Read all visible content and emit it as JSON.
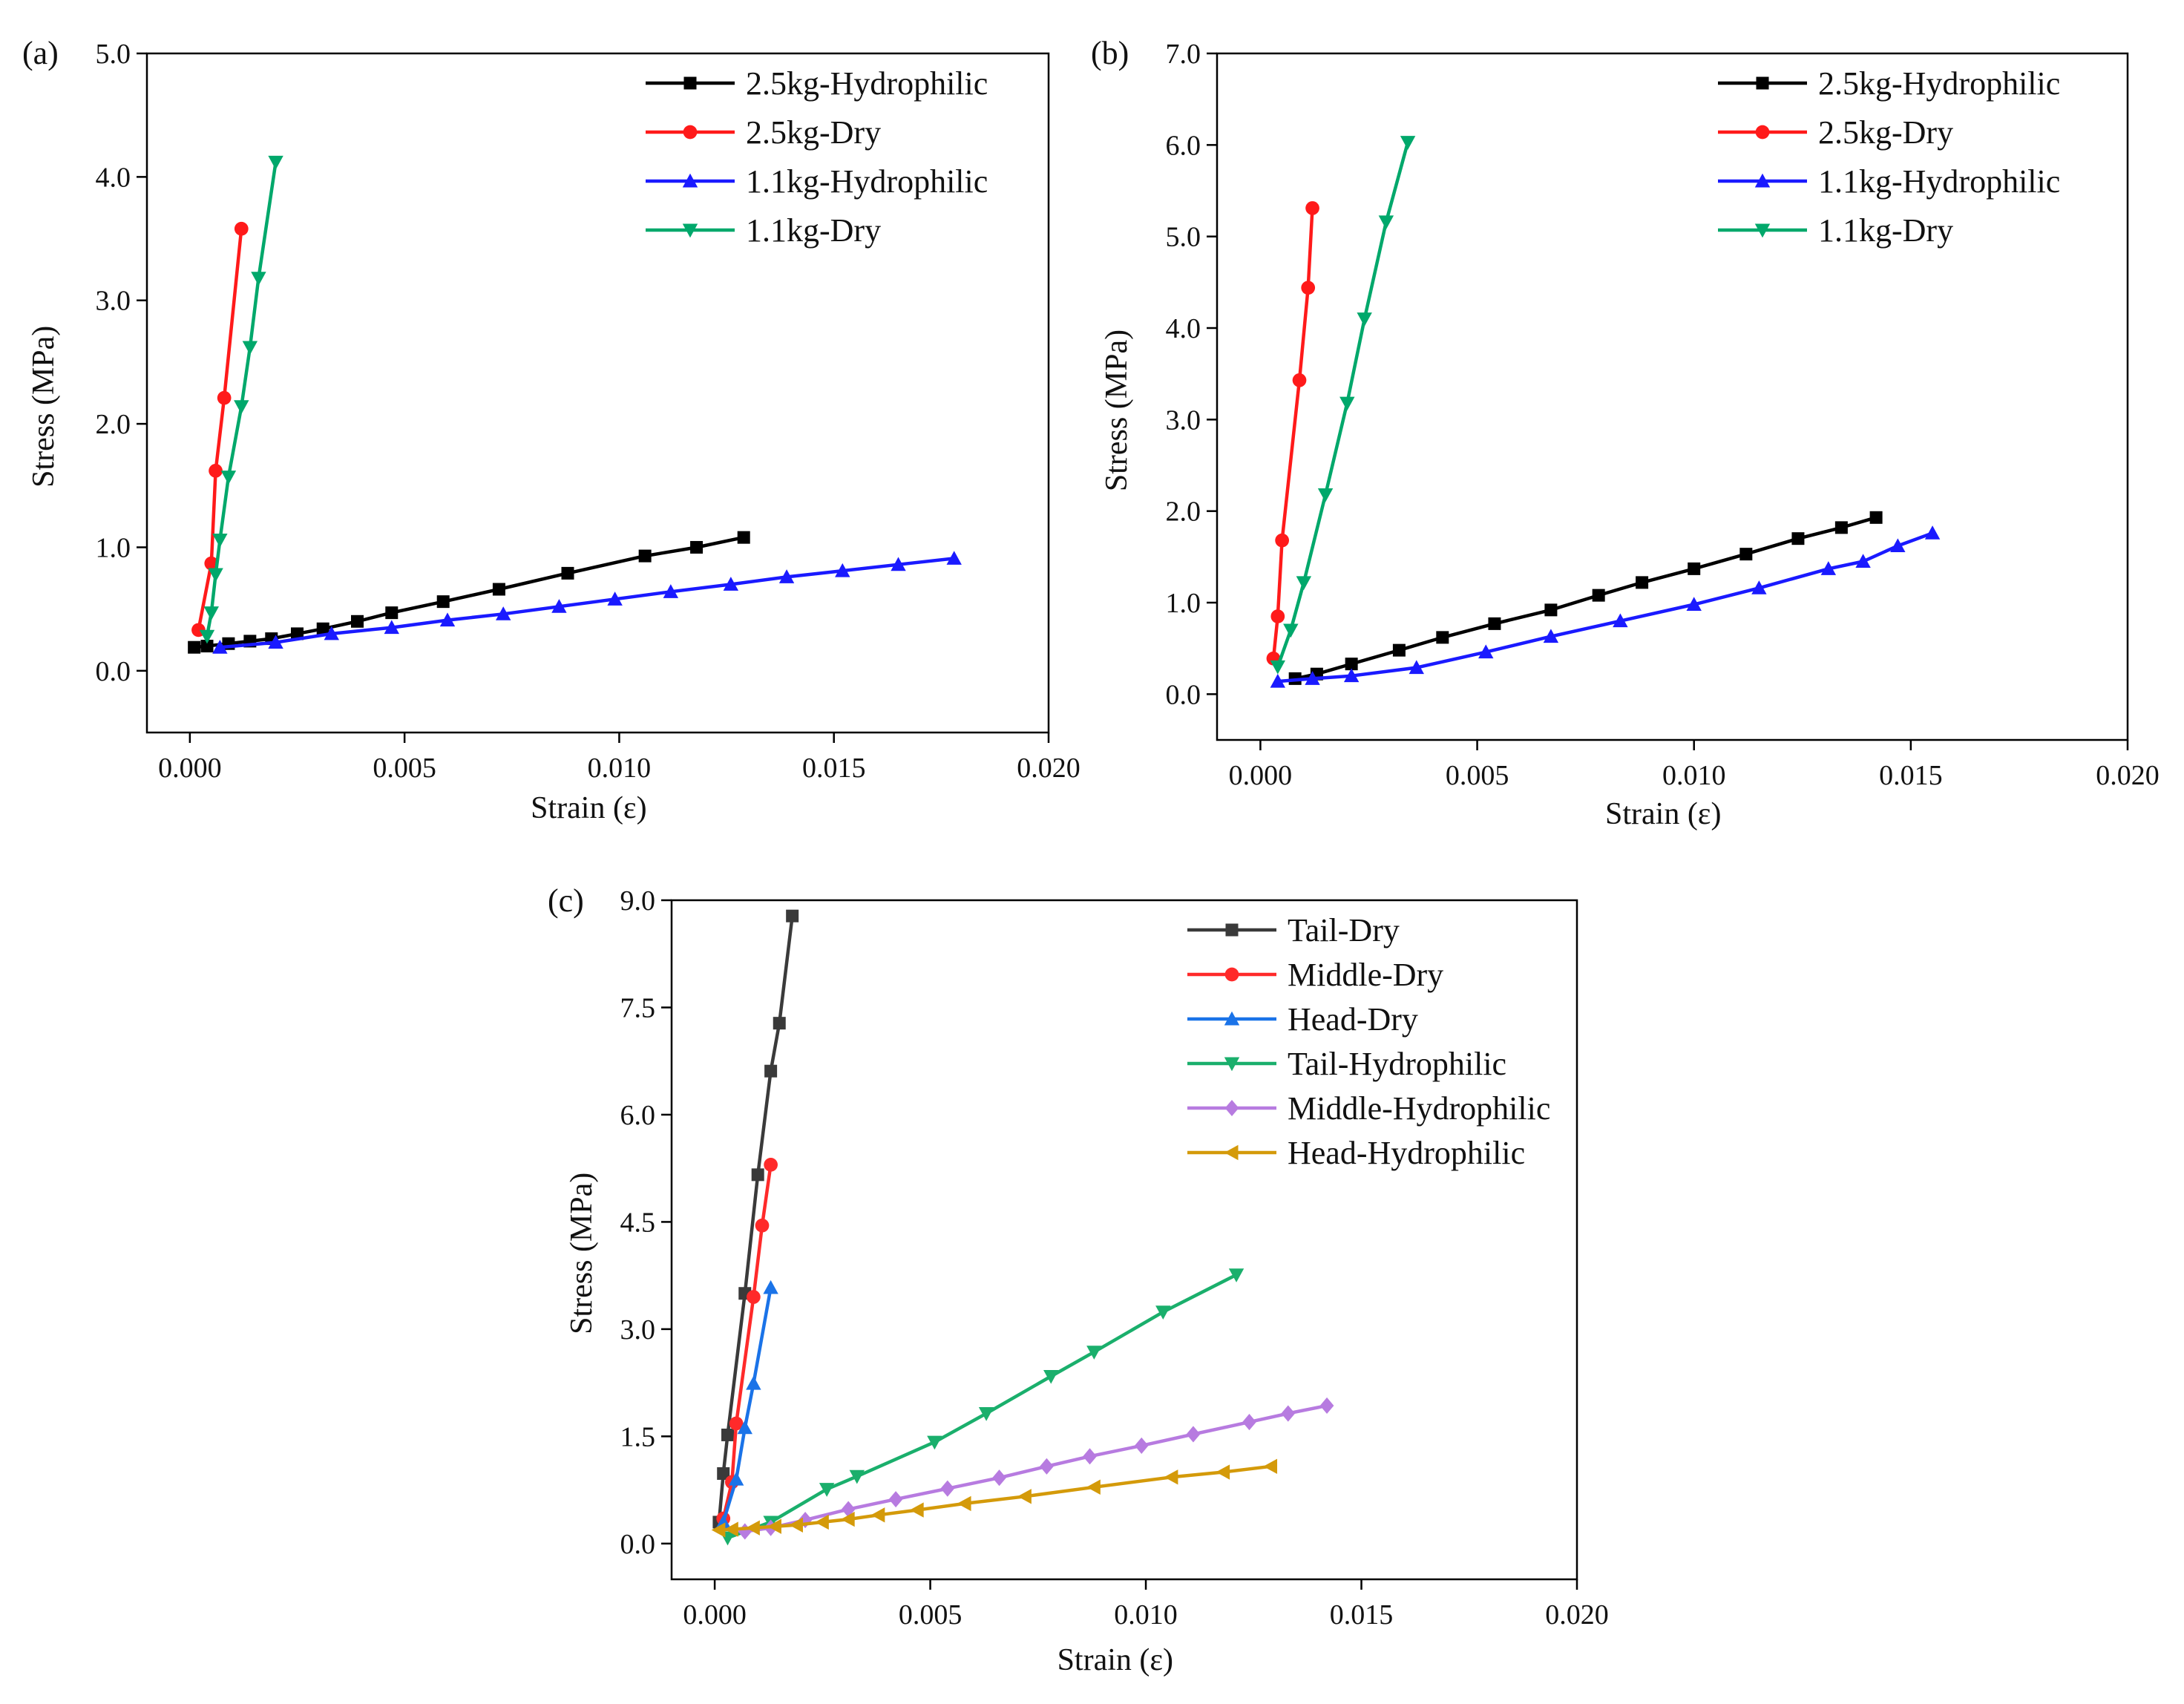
{
  "chart_data": [
    {
      "panel_label": "(a)",
      "type": "line",
      "xlabel": "Strain (ε)",
      "ylabel": "Stress (MPa)",
      "xlim": [
        -0.001,
        0.02
      ],
      "ylim": [
        -0.5,
        5.0
      ],
      "xticks": [
        0.0,
        0.005,
        0.01,
        0.015,
        0.02
      ],
      "xtick_labels": [
        "0.000",
        "0.005",
        "0.010",
        "0.015",
        "0.020"
      ],
      "yticks": [
        0.0,
        1.0,
        2.0,
        3.0,
        4.0,
        5.0
      ],
      "ytick_labels": [
        "0.0",
        "1.0",
        "2.0",
        "3.0",
        "4.0",
        "5.0"
      ],
      "legend_position": "top-right",
      "series": [
        {
          "name": "2.5kg-Hydrophilic",
          "color": "#000000",
          "marker": "square",
          "x": [
            0.0001,
            0.0004,
            0.0009,
            0.0014,
            0.0019,
            0.0025,
            0.0031,
            0.0039,
            0.0047,
            0.0059,
            0.0072,
            0.0088,
            0.0106,
            0.0118,
            0.0129
          ],
          "y": [
            0.19,
            0.2,
            0.22,
            0.24,
            0.26,
            0.3,
            0.34,
            0.4,
            0.47,
            0.56,
            0.66,
            0.79,
            0.93,
            1.0,
            1.08
          ]
        },
        {
          "name": "2.5kg-Dry",
          "color": "#ff1a1a",
          "marker": "circle",
          "x": [
            0.0002,
            0.0005,
            0.0006,
            0.0008,
            0.0012
          ],
          "y": [
            0.33,
            0.87,
            1.62,
            2.21,
            3.58
          ]
        },
        {
          "name": "1.1kg-Hydrophilic",
          "color": "#1a1aff",
          "marker": "triangle-up",
          "x": [
            0.0007,
            0.002,
            0.0033,
            0.0047,
            0.006,
            0.0073,
            0.0086,
            0.0099,
            0.0112,
            0.0126,
            0.0139,
            0.0152,
            0.0165,
            0.0178
          ],
          "y": [
            0.19,
            0.23,
            0.3,
            0.35,
            0.41,
            0.46,
            0.52,
            0.58,
            0.64,
            0.7,
            0.76,
            0.81,
            0.86,
            0.91
          ]
        },
        {
          "name": "1.1kg-Dry",
          "color": "#00a86b",
          "marker": "triangle-down",
          "x": [
            0.0004,
            0.0005,
            0.0006,
            0.0007,
            0.0009,
            0.0012,
            0.0014,
            0.0016,
            0.002
          ],
          "y": [
            0.28,
            0.47,
            0.78,
            1.06,
            1.57,
            2.14,
            2.62,
            3.18,
            4.12
          ]
        }
      ]
    },
    {
      "panel_label": "(b)",
      "type": "line",
      "xlabel": "Strain (ε)",
      "ylabel": "Stress (MPa)",
      "xlim": [
        -0.001,
        0.02
      ],
      "ylim": [
        -0.5,
        7.0
      ],
      "xticks": [
        0.0,
        0.005,
        0.01,
        0.015,
        0.02
      ],
      "xtick_labels": [
        "0.000",
        "0.005",
        "0.010",
        "0.015",
        "0.020"
      ],
      "yticks": [
        0.0,
        1.0,
        2.0,
        3.0,
        4.0,
        5.0,
        6.0,
        7.0
      ],
      "ytick_labels": [
        "0.0",
        "1.0",
        "2.0",
        "3.0",
        "4.0",
        "5.0",
        "6.0",
        "7.0"
      ],
      "legend_position": "top-right",
      "series": [
        {
          "name": "2.5kg-Hydrophilic",
          "color": "#000000",
          "marker": "square",
          "x": [
            0.0008,
            0.0013,
            0.0021,
            0.0032,
            0.0042,
            0.0054,
            0.0067,
            0.0078,
            0.0088,
            0.01,
            0.0112,
            0.0124,
            0.0134,
            0.0142
          ],
          "y": [
            0.17,
            0.22,
            0.33,
            0.48,
            0.62,
            0.77,
            0.92,
            1.08,
            1.22,
            1.37,
            1.53,
            1.7,
            1.82,
            1.93
          ]
        },
        {
          "name": "2.5kg-Dry",
          "color": "#ff1a1a",
          "marker": "circle",
          "x": [
            0.0003,
            0.0004,
            0.0005,
            0.0009,
            0.0011,
            0.0012
          ],
          "y": [
            0.39,
            0.85,
            1.68,
            3.43,
            4.44,
            5.31
          ]
        },
        {
          "name": "1.1kg-Hydrophilic",
          "color": "#1a1aff",
          "marker": "triangle-up",
          "x": [
            0.0004,
            0.0012,
            0.0021,
            0.0036,
            0.0052,
            0.0067,
            0.0083,
            0.01,
            0.0115,
            0.0131,
            0.0139,
            0.0147,
            0.0155
          ],
          "y": [
            0.14,
            0.17,
            0.2,
            0.29,
            0.46,
            0.63,
            0.8,
            0.98,
            1.16,
            1.37,
            1.45,
            1.62,
            1.76
          ]
        },
        {
          "name": "1.1kg-Dry",
          "color": "#00a86b",
          "marker": "triangle-down",
          "x": [
            0.0004,
            0.0007,
            0.001,
            0.0015,
            0.002,
            0.0024,
            0.0029,
            0.0034
          ],
          "y": [
            0.3,
            0.7,
            1.22,
            2.18,
            3.18,
            4.1,
            5.16,
            6.03
          ]
        }
      ]
    },
    {
      "panel_label": "(c)",
      "type": "line",
      "xlabel": "Strain (ε)",
      "ylabel": "Stress (MPa)",
      "xlim": [
        -0.001,
        0.02
      ],
      "ylim": [
        -0.5,
        9.0
      ],
      "xticks": [
        0.0,
        0.005,
        0.01,
        0.015,
        0.02
      ],
      "xtick_labels": [
        "0.000",
        "0.005",
        "0.010",
        "0.015",
        "0.020"
      ],
      "yticks": [
        0.0,
        1.5,
        3.0,
        4.5,
        6.0,
        7.5,
        9.0
      ],
      "ytick_labels": [
        "0.0",
        "1.5",
        "3.0",
        "4.5",
        "6.0",
        "7.5",
        "9.0"
      ],
      "legend_position": "top-right",
      "series": [
        {
          "name": "Tail-Dry",
          "color": "#3a3a3a",
          "marker": "square",
          "x": [
            0.0001,
            0.0002,
            0.0003,
            0.0007,
            0.001,
            0.0013,
            0.0015,
            0.0018
          ],
          "y": [
            0.3,
            0.98,
            1.52,
            3.5,
            5.16,
            6.61,
            7.28,
            8.78
          ]
        },
        {
          "name": "Middle-Dry",
          "color": "#ff2a2a",
          "marker": "circle",
          "x": [
            0.0002,
            0.0004,
            0.0005,
            0.0009,
            0.0011,
            0.0013
          ],
          "y": [
            0.35,
            0.86,
            1.68,
            3.45,
            4.45,
            5.3
          ]
        },
        {
          "name": "Head-Dry",
          "color": "#1a73e8",
          "marker": "triangle-up",
          "x": [
            0.0002,
            0.0005,
            0.0007,
            0.0009,
            0.0013
          ],
          "y": [
            0.3,
            0.9,
            1.62,
            2.24,
            3.58
          ]
        },
        {
          "name": "Tail-Hydrophilic",
          "color": "#1aaf6c",
          "marker": "triangle-down",
          "x": [
            0.0003,
            0.0013,
            0.0026,
            0.0033,
            0.0051,
            0.0063,
            0.0078,
            0.0088,
            0.0104,
            0.0121
          ],
          "y": [
            0.08,
            0.3,
            0.76,
            0.94,
            1.42,
            1.82,
            2.34,
            2.68,
            3.24,
            3.76
          ]
        },
        {
          "name": "Middle-Hydrophilic",
          "color": "#b77be0",
          "marker": "diamond",
          "x": [
            0.0007,
            0.0013,
            0.0021,
            0.0031,
            0.0042,
            0.0054,
            0.0066,
            0.0077,
            0.0087,
            0.0099,
            0.0111,
            0.0124,
            0.0133,
            0.0142
          ],
          "y": [
            0.17,
            0.22,
            0.33,
            0.48,
            0.62,
            0.77,
            0.92,
            1.08,
            1.22,
            1.37,
            1.53,
            1.7,
            1.82,
            1.93
          ]
        },
        {
          "name": "Head-Hydrophilic",
          "color": "#d49a0a",
          "marker": "triangle-left",
          "x": [
            0.0001,
            0.0004,
            0.0009,
            0.0014,
            0.0019,
            0.0025,
            0.0031,
            0.0038,
            0.0047,
            0.0058,
            0.0072,
            0.0088,
            0.0106,
            0.0118,
            0.0129
          ],
          "y": [
            0.19,
            0.2,
            0.22,
            0.24,
            0.26,
            0.3,
            0.34,
            0.4,
            0.47,
            0.56,
            0.66,
            0.79,
            0.93,
            1.0,
            1.08
          ]
        }
      ]
    }
  ]
}
